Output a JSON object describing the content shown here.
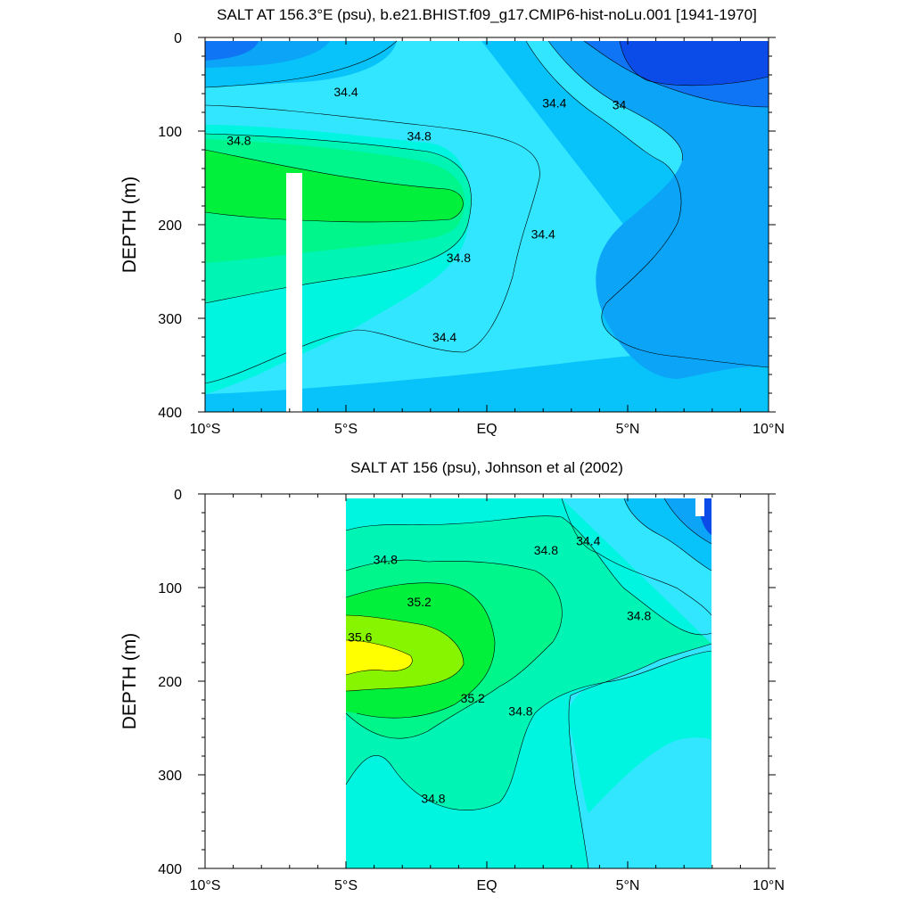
{
  "chart_data": [
    {
      "type": "contour",
      "title": "SALT AT 156.3°E (psu), b.e21.BHIST.f09_g17.CMIP6-hist-noLu.001 [1941-1970]",
      "ylabel": "DEPTH (m)",
      "xlabel": "",
      "xlim": [
        -10,
        10
      ],
      "ylim": [
        0,
        400
      ],
      "y_reversed": true,
      "x_ticks": [
        {
          "value": -10,
          "label": "10°S"
        },
        {
          "value": -5,
          "label": "5°S"
        },
        {
          "value": 0,
          "label": "EQ"
        },
        {
          "value": 5,
          "label": "5°N"
        },
        {
          "value": 10,
          "label": "10°N"
        }
      ],
      "y_ticks": [
        {
          "value": 0,
          "label": "0"
        },
        {
          "value": 100,
          "label": "100"
        },
        {
          "value": 200,
          "label": "200"
        },
        {
          "value": 300,
          "label": "300"
        },
        {
          "value": 400,
          "label": "400"
        }
      ],
      "data_extent": {
        "x": [
          -10,
          10
        ],
        "depth": [
          3,
          400
        ]
      },
      "missing_column": {
        "x": [
          -7.1,
          -6.6
        ],
        "depth": [
          145,
          400
        ]
      },
      "contour_labels": [
        {
          "text": "34.4",
          "x": -5.0,
          "y": 58
        },
        {
          "text": "34.4",
          "x": 2.4,
          "y": 70
        },
        {
          "text": "34",
          "x": 4.7,
          "y": 72
        },
        {
          "text": "34.8",
          "x": -8.8,
          "y": 110
        },
        {
          "text": "34.8",
          "x": -2.4,
          "y": 105
        },
        {
          "text": "34.4",
          "x": 2.0,
          "y": 210
        },
        {
          "text": "34.8",
          "x": -1.0,
          "y": 235
        },
        {
          "text": "34.4",
          "x": -1.5,
          "y": 320
        }
      ]
    },
    {
      "type": "contour",
      "title": "SALT AT 156 (psu), Johnson et al (2002)",
      "ylabel": "DEPTH (m)",
      "xlabel": "",
      "xlim": [
        -10,
        10
      ],
      "ylim": [
        0,
        400
      ],
      "y_reversed": true,
      "x_ticks": [
        {
          "value": -10,
          "label": "10°S"
        },
        {
          "value": -5,
          "label": "5°S"
        },
        {
          "value": 0,
          "label": "EQ"
        },
        {
          "value": 5,
          "label": "5°N"
        },
        {
          "value": 10,
          "label": "10°N"
        }
      ],
      "y_ticks": [
        {
          "value": 0,
          "label": "0"
        },
        {
          "value": 100,
          "label": "100"
        },
        {
          "value": 200,
          "label": "200"
        },
        {
          "value": 300,
          "label": "300"
        },
        {
          "value": 400,
          "label": "400"
        }
      ],
      "data_extent": {
        "x": [
          -5,
          8
        ],
        "depth": [
          5,
          400
        ]
      },
      "contour_labels": [
        {
          "text": "34.8",
          "x": -3.6,
          "y": 70
        },
        {
          "text": "34.8",
          "x": 2.1,
          "y": 60
        },
        {
          "text": "34.4",
          "x": 3.6,
          "y": 50
        },
        {
          "text": "35.2",
          "x": -2.4,
          "y": 115
        },
        {
          "text": "35.6",
          "x": -4.5,
          "y": 153
        },
        {
          "text": "34.8",
          "x": 5.4,
          "y": 130
        },
        {
          "text": "35.2",
          "x": -0.5,
          "y": 218
        },
        {
          "text": "34.8",
          "x": 1.2,
          "y": 232
        },
        {
          "text": "34.8",
          "x": -1.9,
          "y": 325
        }
      ]
    }
  ],
  "colors": {
    "deep_blue": "#0b4be8",
    "blue": "#0f75f4",
    "mid_blue": "#0ca4f7",
    "light_blue": "#08c3fa",
    "cyan": "#33e6ff",
    "aqua": "#00f5e1",
    "sea_green": "#00f5b4",
    "green": "#00f58a",
    "bright_green": "#00f03c",
    "lime": "#88f500",
    "yellow": "#ffff00"
  }
}
